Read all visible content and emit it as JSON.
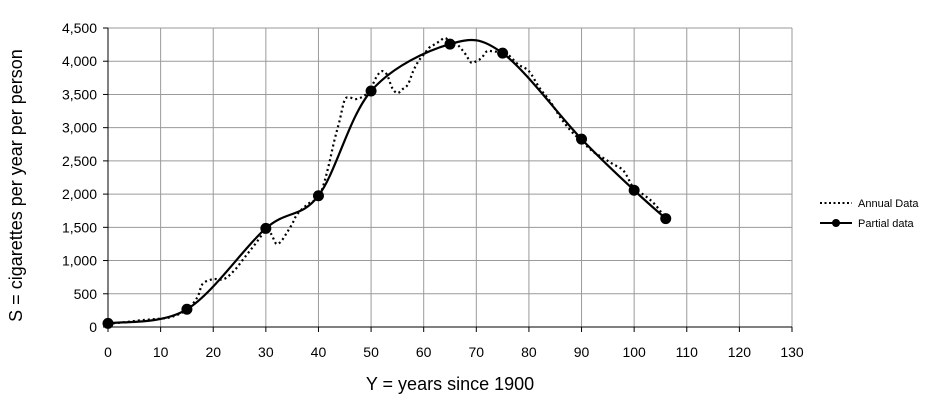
{
  "chart_data": {
    "type": "line",
    "title": "",
    "xlabel": "Y = years since 1900",
    "ylabel": "S = cigarettes per year per person",
    "xlim": [
      0,
      130
    ],
    "ylim": [
      0,
      4500
    ],
    "xticks": [
      0,
      10,
      20,
      30,
      40,
      50,
      60,
      70,
      80,
      90,
      100,
      110,
      120,
      130
    ],
    "yticks": [
      0,
      500,
      1000,
      1500,
      2000,
      2500,
      3000,
      3500,
      4000,
      4500
    ],
    "ytick_labels": [
      "0",
      "500",
      "1,000",
      "1,500",
      "2,000",
      "2,500",
      "3,000",
      "3,500",
      "4,000",
      "4,500"
    ],
    "grid": true,
    "legend": "right",
    "series": [
      {
        "name": "Annual Data",
        "style": "dotted",
        "color": "#000000",
        "x": [
          0,
          3,
          6,
          9,
          12,
          15,
          17,
          18,
          20,
          22,
          24,
          26,
          28,
          30,
          31,
          32,
          33,
          34,
          35,
          36,
          38,
          40,
          41,
          42,
          43,
          44,
          45,
          46,
          47,
          48,
          49,
          50,
          51,
          52,
          53,
          54,
          55,
          56,
          57,
          58,
          59,
          60,
          61,
          62,
          63,
          64,
          65,
          66,
          67,
          68,
          69,
          70,
          71,
          72,
          73,
          74,
          75,
          76,
          78,
          80,
          82,
          84,
          86,
          88,
          90,
          92,
          94,
          96,
          98,
          100,
          102,
          104,
          106
        ],
        "y": [
          50,
          70,
          100,
          120,
          150,
          260,
          450,
          650,
          720,
          720,
          850,
          1050,
          1250,
          1450,
          1400,
          1250,
          1300,
          1420,
          1550,
          1700,
          1850,
          1950,
          2150,
          2450,
          2800,
          3100,
          3420,
          3450,
          3430,
          3450,
          3500,
          3600,
          3760,
          3850,
          3800,
          3600,
          3520,
          3580,
          3650,
          3850,
          4000,
          4100,
          4200,
          4250,
          4300,
          4350,
          4300,
          4280,
          4200,
          4100,
          3980,
          4000,
          4050,
          4150,
          4150,
          4140,
          4120,
          4100,
          3950,
          3850,
          3600,
          3400,
          3150,
          2950,
          2800,
          2650,
          2550,
          2450,
          2350,
          2080,
          1980,
          1840,
          1630
        ]
      },
      {
        "name": "Partial data",
        "style": "solid",
        "marker": "circle",
        "color": "#000000",
        "x": [
          0,
          15,
          30,
          40,
          50,
          65,
          75,
          90,
          100,
          106
        ],
        "y": [
          54,
          267,
          1485,
          1976,
          3552,
          4258,
          4122,
          2828,
          2058,
          1632
        ]
      }
    ]
  }
}
